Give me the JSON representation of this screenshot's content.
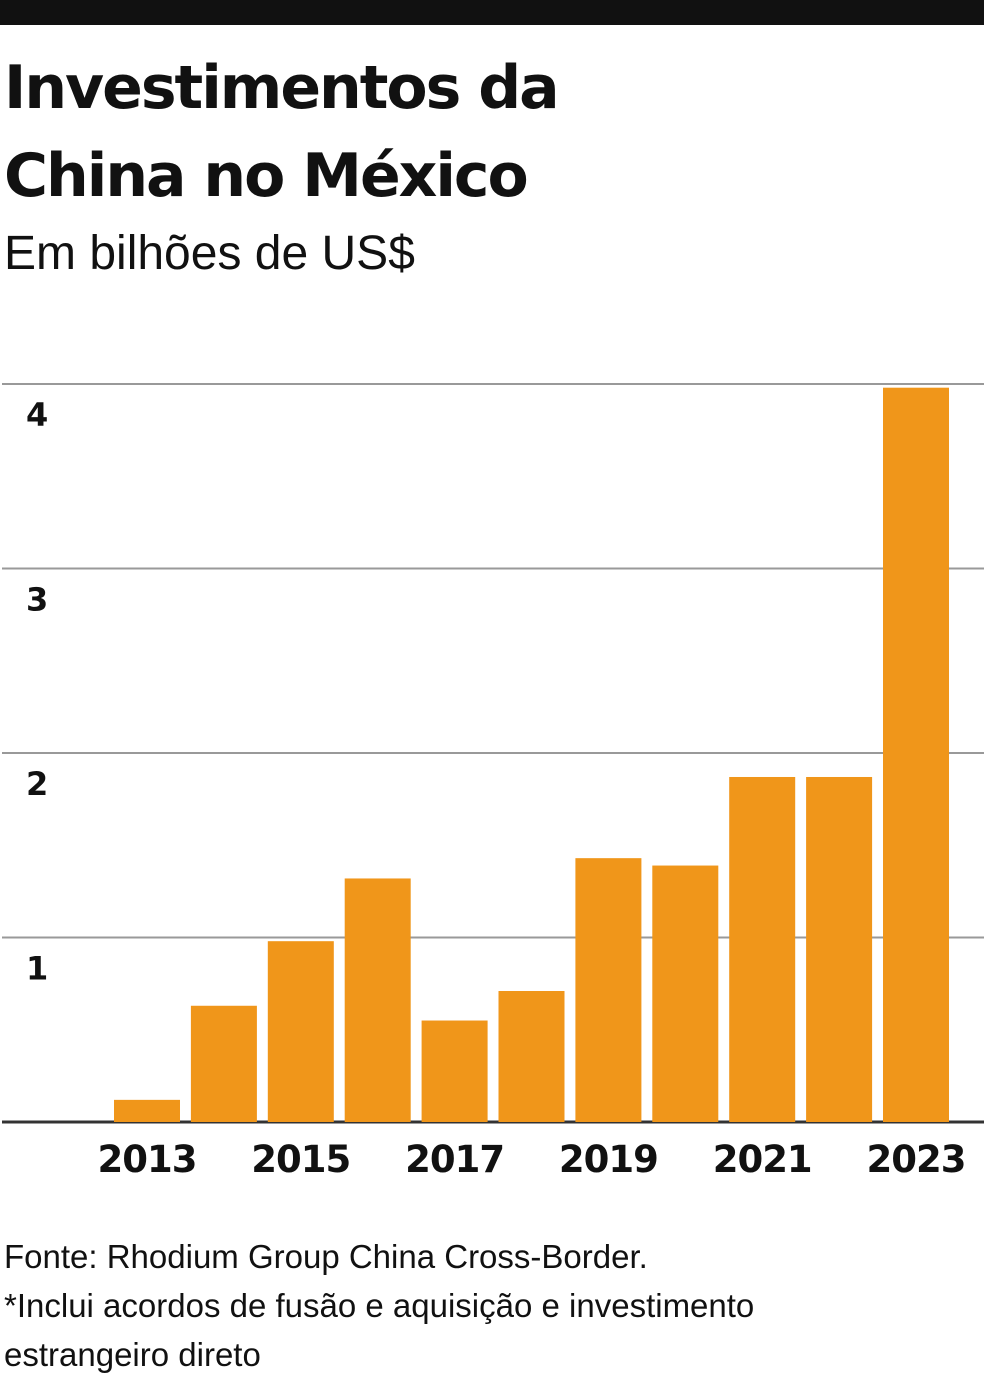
{
  "header": {
    "title_line1": "Investimentos da",
    "title_line2": "China no México",
    "subtitle": "Em bilhões de US$"
  },
  "footer": {
    "source": "Fonte: Rhodium Group China Cross-Border.",
    "note_line1": "*Inclui acordos de fusão e aquisição e investimento",
    "note_line2": "estrangeiro direto"
  },
  "colors": {
    "bar": "#f0961a",
    "grid": "#999999",
    "baseline": "#333333",
    "text": "#111111"
  },
  "chart_data": {
    "type": "bar",
    "title": "Investimentos da China no México",
    "subtitle": "Em bilhões de US$",
    "xlabel": "",
    "ylabel": "Em bilhões de US$",
    "categories": [
      "2013",
      "2014",
      "2015",
      "2016",
      "2017",
      "2018",
      "2019",
      "2020",
      "2021",
      "2022",
      "2023"
    ],
    "values": [
      0.12,
      0.63,
      0.98,
      1.32,
      0.55,
      0.71,
      1.43,
      1.39,
      1.87,
      1.87,
      3.98
    ],
    "x_tick_labels": [
      "2013",
      "2015",
      "2017",
      "2019",
      "2021",
      "2023"
    ],
    "y_ticks": [
      1,
      2,
      3,
      4
    ],
    "y_tick_labels": [
      "1",
      "2",
      "3",
      "4"
    ],
    "ylim": [
      0,
      4.2
    ],
    "grid": true,
    "legend": "none"
  }
}
